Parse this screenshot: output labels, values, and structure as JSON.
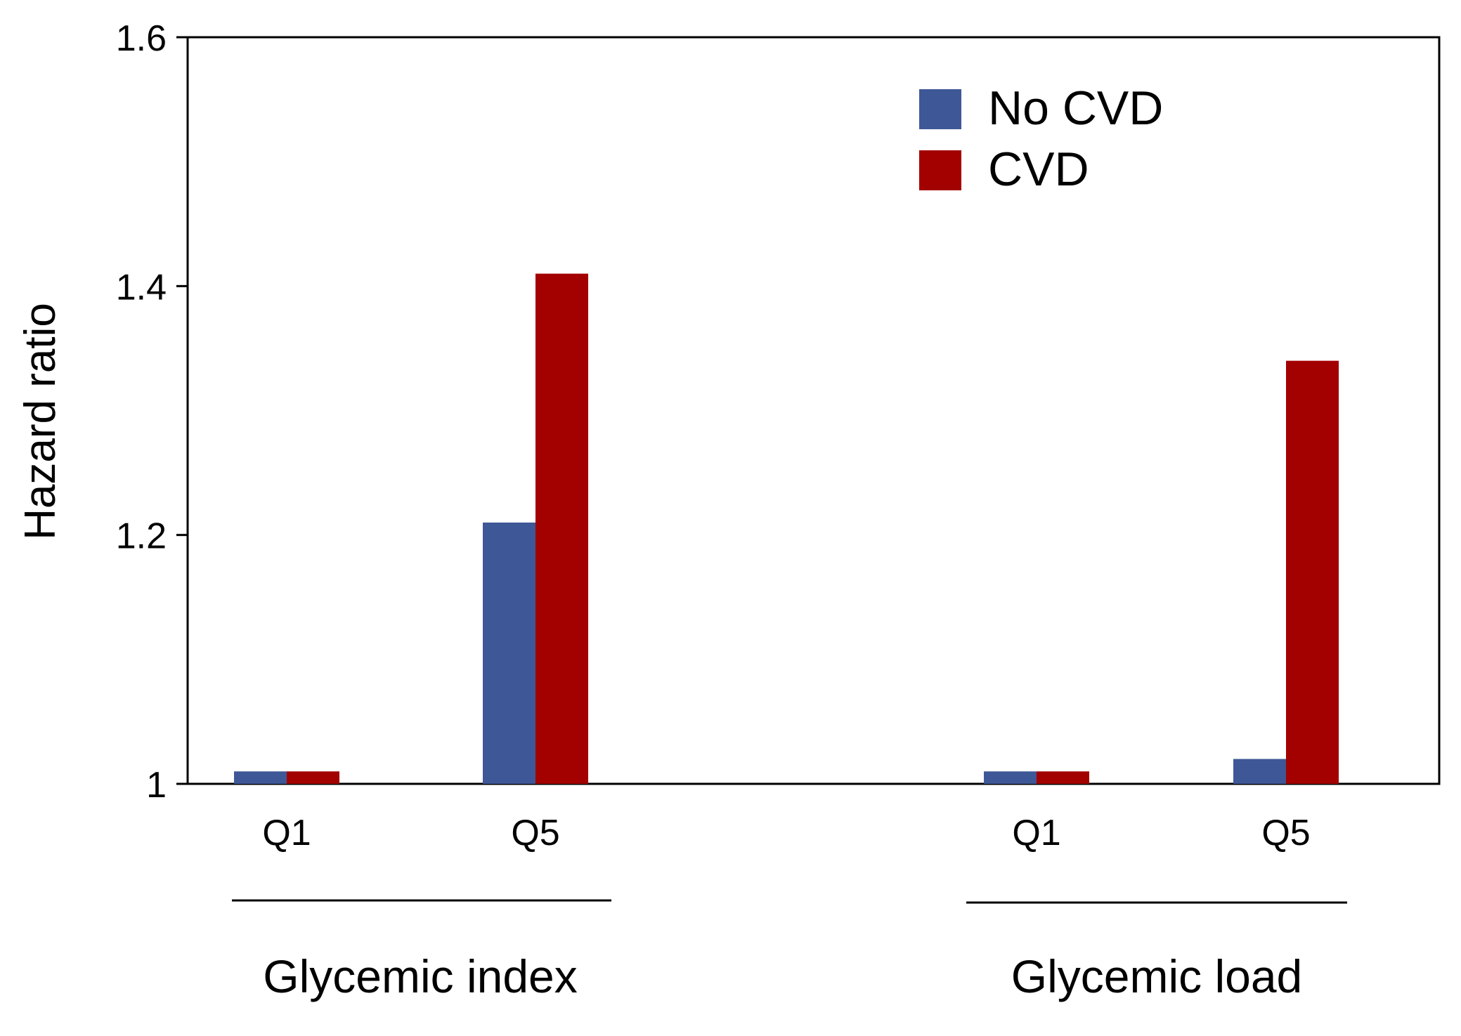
{
  "chart_data": {
    "type": "bar",
    "ylabel": "Hazard ratio",
    "ylim": [
      1,
      1.6
    ],
    "yticks": [
      1,
      1.2,
      1.4,
      1.6
    ],
    "ytick_labels": [
      "1",
      "1.2",
      "1.4",
      "1.6"
    ],
    "groups": [
      {
        "label": "Glycemic index",
        "categories": [
          "Q1",
          "Q5"
        ]
      },
      {
        "label": "Glycemic load",
        "categories": [
          "Q1",
          "Q5"
        ]
      }
    ],
    "series": [
      {
        "name": "No CVD",
        "color": "#3e5796",
        "values": [
          1.01,
          1.21,
          1.01,
          1.02
        ]
      },
      {
        "name": "CVD",
        "color": "#a30000",
        "values": [
          1.01,
          1.41,
          1.01,
          1.34
        ]
      }
    ],
    "legend_position": "top-right",
    "grid": false
  }
}
